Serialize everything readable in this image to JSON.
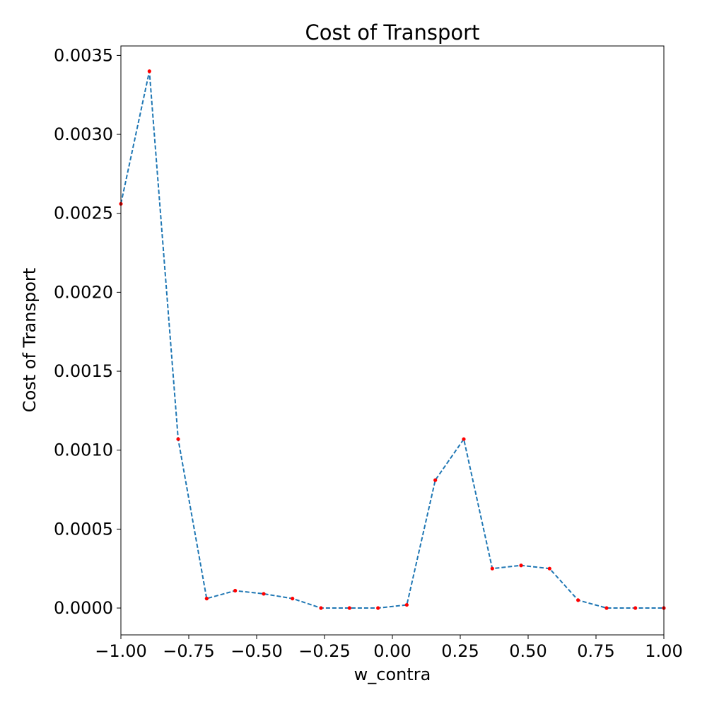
{
  "chart_data": {
    "type": "line",
    "title": "Cost of Transport",
    "xlabel": "w_contra",
    "ylabel": "Cost of Transport",
    "xlim": [
      -1.0,
      1.0
    ],
    "ylim": [
      -0.00017,
      0.00356
    ],
    "grid": false,
    "x_ticks": [
      -1.0,
      -0.75,
      -0.5,
      -0.25,
      0.0,
      0.25,
      0.5,
      0.75,
      1.0
    ],
    "x_tick_labels": [
      "−1.00",
      "−0.75",
      "−0.50",
      "−0.25",
      "0.00",
      "0.25",
      "0.50",
      "0.75",
      "1.00"
    ],
    "y_ticks": [
      0.0,
      0.0005,
      0.001,
      0.0015,
      0.002,
      0.0025,
      0.003,
      0.0035
    ],
    "y_tick_labels": [
      "0.0000",
      "0.0005",
      "0.0010",
      "0.0015",
      "0.0020",
      "0.0025",
      "0.0030",
      "0.0035"
    ],
    "series": [
      {
        "line_color": "#1f77b4",
        "line_style": "dashed",
        "marker_color": "#ff0000",
        "x": [
          -1.0,
          -0.895,
          -0.789,
          -0.684,
          -0.579,
          -0.474,
          -0.368,
          -0.263,
          -0.158,
          -0.053,
          0.053,
          0.158,
          0.263,
          0.368,
          0.474,
          0.579,
          0.684,
          0.789,
          0.895,
          1.0
        ],
        "y": [
          0.00256,
          0.0034,
          0.00107,
          6e-05,
          0.00011,
          9e-05,
          6e-05,
          0.0,
          0.0,
          0.0,
          2e-05,
          0.00081,
          0.00107,
          0.00025,
          0.00027,
          0.00025,
          5e-05,
          0.0,
          0.0,
          0.0
        ]
      }
    ]
  }
}
